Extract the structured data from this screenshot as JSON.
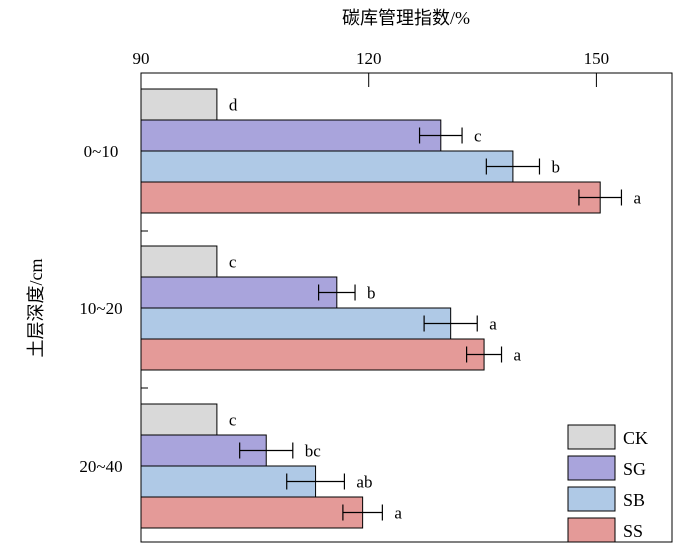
{
  "chart_data": {
    "type": "bar",
    "orientation": "horizontal",
    "xlabel": "碳库管理指数/%",
    "ylabel": "土层深度/cm",
    "xlim": [
      90,
      160
    ],
    "xticks": [
      "90",
      "120",
      "150"
    ],
    "xtick_values": [
      90,
      120,
      150
    ],
    "categories": [
      "0~10",
      "10~20",
      "20~40"
    ],
    "series": [
      {
        "name": "CK",
        "color": "#d9d9d9",
        "values": [
          100,
          100,
          100
        ],
        "errors": [
          0,
          0,
          0
        ],
        "labels": [
          "d",
          "c",
          "c"
        ]
      },
      {
        "name": "SG",
        "color": "#a9a4dc",
        "values": [
          129.5,
          115.8,
          106.5
        ],
        "errors": [
          2.8,
          2.4,
          3.5
        ],
        "labels": [
          "c",
          "b",
          "bc"
        ]
      },
      {
        "name": "SB",
        "color": "#afc9e6",
        "values": [
          139,
          130.8,
          113
        ],
        "errors": [
          3.5,
          3.5,
          3.8
        ],
        "labels": [
          "b",
          "a",
          "ab"
        ]
      },
      {
        "name": "SS",
        "color": "#e49a98",
        "values": [
          150.5,
          135.2,
          119.2
        ],
        "errors": [
          2.8,
          2.3,
          2.6
        ],
        "labels": [
          "a",
          "a",
          "a"
        ]
      }
    ],
    "legend_position": "bottom-right",
    "grid": false
  }
}
